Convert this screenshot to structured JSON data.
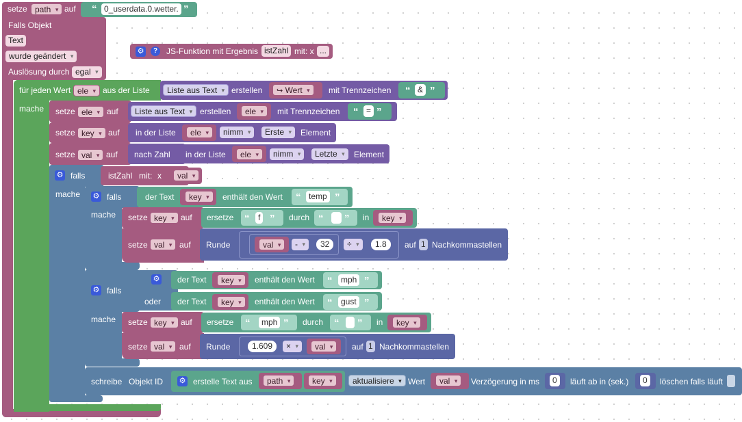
{
  "colors": {
    "variables": "#a55b80",
    "text": "#5ba58c",
    "lists": "#745ba5",
    "math": "#5b67a5",
    "logic": "#5b80a5",
    "loops": "#5ba55b",
    "trigger": "#a55b80",
    "iobroker": "#5b67a5"
  },
  "top": {
    "setze": "setze",
    "var_path": "path",
    "auf": "auf",
    "text_value": "0_userdata.0.wetter."
  },
  "trigger": {
    "falls_objekt": "Falls Objekt",
    "text_input": "Text",
    "wurde_geaendert": "wurde geändert",
    "ausloesung_durch": "Auslösung durch",
    "egal": "egal"
  },
  "jsfunc": {
    "label": "JS-Funktion mit Ergebnis",
    "name": "istZahl",
    "mit": "mit: x",
    "more": "..."
  },
  "foreach": {
    "fuer_jeden_wert": "für jeden Wert",
    "var": "ele",
    "aus_der_liste": "aus der Liste",
    "liste_aus": "Liste aus Text",
    "erstellen": "erstellen",
    "wert": "Wert",
    "mit_trennzeichen": "mit Trennzeichen",
    "sep": "&",
    "mache": "mache"
  },
  "row_ele": {
    "setze": "setze",
    "var": "ele",
    "auf": "auf",
    "liste_aus": "Liste aus Text",
    "erstellen": "erstellen",
    "var2": "ele",
    "mit_trennzeichen": "mit Trennzeichen",
    "sep": "="
  },
  "row_key": {
    "setze": "setze",
    "var": "key",
    "auf": "auf",
    "in_der_liste": "in der Liste",
    "var2": "ele",
    "nimm": "nimm",
    "erste": "Erste",
    "element": "Element"
  },
  "row_val": {
    "setze": "setze",
    "var": "val",
    "auf": "auf",
    "nach_zahl": "nach Zahl",
    "in_der_liste": "in der Liste",
    "var2": "ele",
    "nimm": "nimm",
    "letzte": "Letzte",
    "element": "Element"
  },
  "outer_if": {
    "falls": "falls",
    "istzahl": "istZahl",
    "mit": "mit:",
    "x": "x",
    "var": "val",
    "mache": "mache"
  },
  "if1": {
    "falls": "falls",
    "der_text": "der Text",
    "var": "key",
    "enthaelt": "enthält den Wert",
    "wert": "temp",
    "mache": "mache",
    "r1": {
      "setze": "setze",
      "var": "key",
      "auf": "auf",
      "ersetze": "ersetze",
      "find": "f",
      "durch": "durch",
      "repl": "",
      "in": "in",
      "var2": "key"
    },
    "r2": {
      "setze": "setze",
      "var": "val",
      "auf": "auf",
      "runde": "Runde",
      "var2": "val",
      "op1": "-",
      "n1": "32",
      "op2": "÷",
      "n2": "1.8",
      "auf2": "auf",
      "dec": "1",
      "nachk": "Nachkommastellen"
    }
  },
  "if2": {
    "falls": "falls",
    "der_text": "der Text",
    "var": "key",
    "enthaelt": "enthält den Wert",
    "wert1": "mph",
    "oder": "oder",
    "wert2": "gust",
    "mache": "mache",
    "r1": {
      "setze": "setze",
      "var": "key",
      "auf": "auf",
      "ersetze": "ersetze",
      "find": "mph",
      "durch": "durch",
      "repl": "",
      "in": "in",
      "var2": "key"
    },
    "r2": {
      "setze": "setze",
      "var": "val",
      "auf": "auf",
      "runde": "Runde",
      "n1": "1.609",
      "op": "×",
      "var2": "val",
      "auf2": "auf",
      "dec": "1",
      "nachk": "Nachkommastellen"
    }
  },
  "write": {
    "schreibe": "schreibe",
    "objekt_id": "Objekt ID",
    "erstelle_text": "erstelle Text aus",
    "var1": "path",
    "var2": "key",
    "aktualisiere": "aktualisiere",
    "wert": "Wert",
    "var3": "val",
    "verz": "Verzögerung in ms",
    "n1": "0",
    "laeuft": "läuft ab in (sek.)",
    "n2": "0",
    "loeschen": "löschen falls läuft"
  }
}
